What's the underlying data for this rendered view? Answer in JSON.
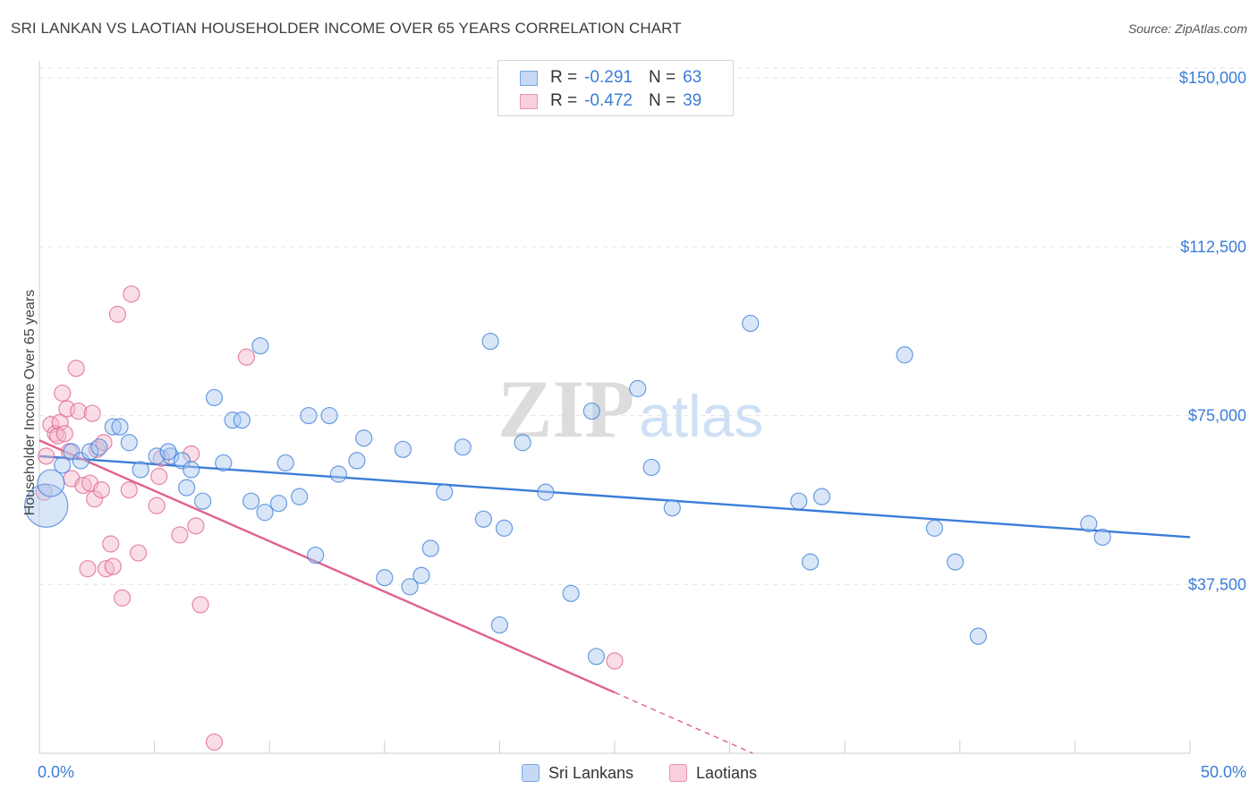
{
  "header": {
    "title": "SRI LANKAN VS LAOTIAN HOUSEHOLDER INCOME OVER 65 YEARS CORRELATION CHART",
    "source": "Source: ZipAtlas.com"
  },
  "legend": {
    "rows": [
      {
        "r_label": "R =",
        "r_value": "-0.291",
        "n_label": "N =",
        "n_value": "63"
      },
      {
        "r_label": "R =",
        "r_value": "-0.472",
        "n_label": "N =",
        "n_value": "39"
      }
    ]
  },
  "bottom_legend": {
    "items": [
      {
        "label": "Sri Lankans"
      },
      {
        "label": "Laotians"
      }
    ]
  },
  "watermark": {
    "part1": "ZIP",
    "part2": "atlas"
  },
  "colors": {
    "blue": "#3b7dd8",
    "blue_fill": "#a9c8ef",
    "pink": "#e0608f",
    "pink_fill": "#f5b5ca",
    "grid": "#e3e3e3"
  },
  "chart_data": {
    "type": "scatter",
    "title": "SRI LANKAN VS LAOTIAN HOUSEHOLDER INCOME OVER 65 YEARS CORRELATION CHART",
    "xlabel": "",
    "ylabel": "Householder Income Over 65 years",
    "xlim": [
      0,
      50
    ],
    "ylim": [
      0,
      155000
    ],
    "x_tick_labels": [
      "0.0%",
      "50.0%"
    ],
    "y_ticks": [
      37500,
      75000,
      112500,
      150000
    ],
    "y_tick_labels": [
      "$37,500",
      "$75,000",
      "$112,500",
      "$150,000"
    ],
    "series": [
      {
        "name": "Sri Lankans",
        "color": "#3b7dd8",
        "points": [
          [
            0.3,
            55000,
            3
          ],
          [
            0.5,
            60000,
            2
          ],
          [
            1.0,
            64000,
            1
          ],
          [
            1.4,
            67000,
            1
          ],
          [
            1.8,
            65000,
            1
          ],
          [
            2.2,
            67000,
            1
          ],
          [
            2.6,
            68000,
            1
          ],
          [
            3.2,
            72500,
            1
          ],
          [
            3.5,
            72500,
            1
          ],
          [
            3.9,
            69000,
            1
          ],
          [
            4.4,
            63000,
            1
          ],
          [
            5.7,
            66000,
            1
          ],
          [
            5.1,
            66000,
            1
          ],
          [
            5.6,
            67000,
            1
          ],
          [
            6.2,
            65000,
            1
          ],
          [
            6.4,
            59000,
            1
          ],
          [
            6.6,
            63000,
            1
          ],
          [
            7.1,
            56000,
            1
          ],
          [
            7.6,
            79000,
            1
          ],
          [
            8.0,
            64500,
            1
          ],
          [
            8.4,
            74000,
            1
          ],
          [
            8.8,
            74000,
            1
          ],
          [
            9.2,
            56000,
            1
          ],
          [
            9.6,
            90500,
            1
          ],
          [
            9.8,
            53500,
            1
          ],
          [
            10.4,
            55500,
            1
          ],
          [
            10.7,
            64500,
            1
          ],
          [
            11.3,
            57000,
            1
          ],
          [
            11.7,
            75000,
            1
          ],
          [
            12.0,
            44000,
            1
          ],
          [
            12.6,
            75000,
            1
          ],
          [
            13.0,
            62000,
            1
          ],
          [
            13.8,
            65000,
            1
          ],
          [
            14.1,
            70000,
            1
          ],
          [
            15.0,
            39000,
            1
          ],
          [
            15.8,
            67500,
            1
          ],
          [
            16.1,
            37000,
            1
          ],
          [
            16.6,
            39500,
            1
          ],
          [
            17.0,
            45500,
            1
          ],
          [
            17.6,
            58000,
            1
          ],
          [
            18.4,
            68000,
            1
          ],
          [
            19.3,
            52000,
            1
          ],
          [
            19.6,
            91500,
            1
          ],
          [
            20.0,
            28500,
            1
          ],
          [
            20.2,
            50000,
            1
          ],
          [
            21.0,
            69000,
            1
          ],
          [
            22.0,
            58000,
            1
          ],
          [
            23.1,
            35500,
            1
          ],
          [
            24.0,
            76000,
            1
          ],
          [
            24.2,
            21500,
            1
          ],
          [
            26.0,
            81000,
            1
          ],
          [
            26.6,
            63500,
            1
          ],
          [
            27.5,
            54500,
            1
          ],
          [
            30.9,
            95500,
            1
          ],
          [
            33.0,
            56000,
            1
          ],
          [
            33.5,
            42500,
            1
          ],
          [
            34.0,
            57000,
            1
          ],
          [
            37.6,
            88500,
            1
          ],
          [
            38.9,
            50000,
            1
          ],
          [
            39.8,
            42500,
            1
          ],
          [
            40.8,
            26000,
            1
          ],
          [
            45.6,
            51000,
            1
          ],
          [
            46.2,
            48000,
            1
          ]
        ],
        "trend": {
          "x": [
            0,
            50
          ],
          "y": [
            66000,
            48000
          ]
        }
      },
      {
        "name": "Laotians",
        "color": "#e0608f",
        "points": [
          [
            0.2,
            58000,
            1
          ],
          [
            0.3,
            66000,
            1
          ],
          [
            0.5,
            73000,
            1
          ],
          [
            0.7,
            71000,
            1
          ],
          [
            0.9,
            73500,
            1
          ],
          [
            0.8,
            70500,
            1
          ],
          [
            1.0,
            80000,
            1
          ],
          [
            1.1,
            71000,
            1
          ],
          [
            1.2,
            76500,
            1
          ],
          [
            1.3,
            67000,
            1
          ],
          [
            1.4,
            61000,
            1
          ],
          [
            1.6,
            85500,
            1
          ],
          [
            1.7,
            76000,
            1
          ],
          [
            1.9,
            59500,
            1
          ],
          [
            2.1,
            41000,
            1
          ],
          [
            2.2,
            60000,
            1
          ],
          [
            2.3,
            75500,
            1
          ],
          [
            2.4,
            56500,
            1
          ],
          [
            2.5,
            67500,
            1
          ],
          [
            2.7,
            58500,
            1
          ],
          [
            2.8,
            69000,
            1
          ],
          [
            2.9,
            41000,
            1
          ],
          [
            3.1,
            46500,
            1
          ],
          [
            3.2,
            41500,
            1
          ],
          [
            3.4,
            97500,
            1
          ],
          [
            3.6,
            34500,
            1
          ],
          [
            3.9,
            58500,
            1
          ],
          [
            4.0,
            102000,
            1
          ],
          [
            4.3,
            44500,
            1
          ],
          [
            5.1,
            55000,
            1
          ],
          [
            5.2,
            61500,
            1
          ],
          [
            5.3,
            65500,
            1
          ],
          [
            6.1,
            48500,
            1
          ],
          [
            6.6,
            66500,
            1
          ],
          [
            6.8,
            50500,
            1
          ],
          [
            7.0,
            33000,
            1
          ],
          [
            7.6,
            2500,
            1
          ],
          [
            9.0,
            88000,
            1
          ],
          [
            25.0,
            20500,
            1
          ]
        ],
        "trend": {
          "x": [
            0,
            25
          ],
          "y": [
            69500,
            13500
          ]
        },
        "trend_dashed": {
          "x": [
            25,
            31
          ],
          "y": [
            13500,
            0
          ]
        }
      }
    ]
  }
}
